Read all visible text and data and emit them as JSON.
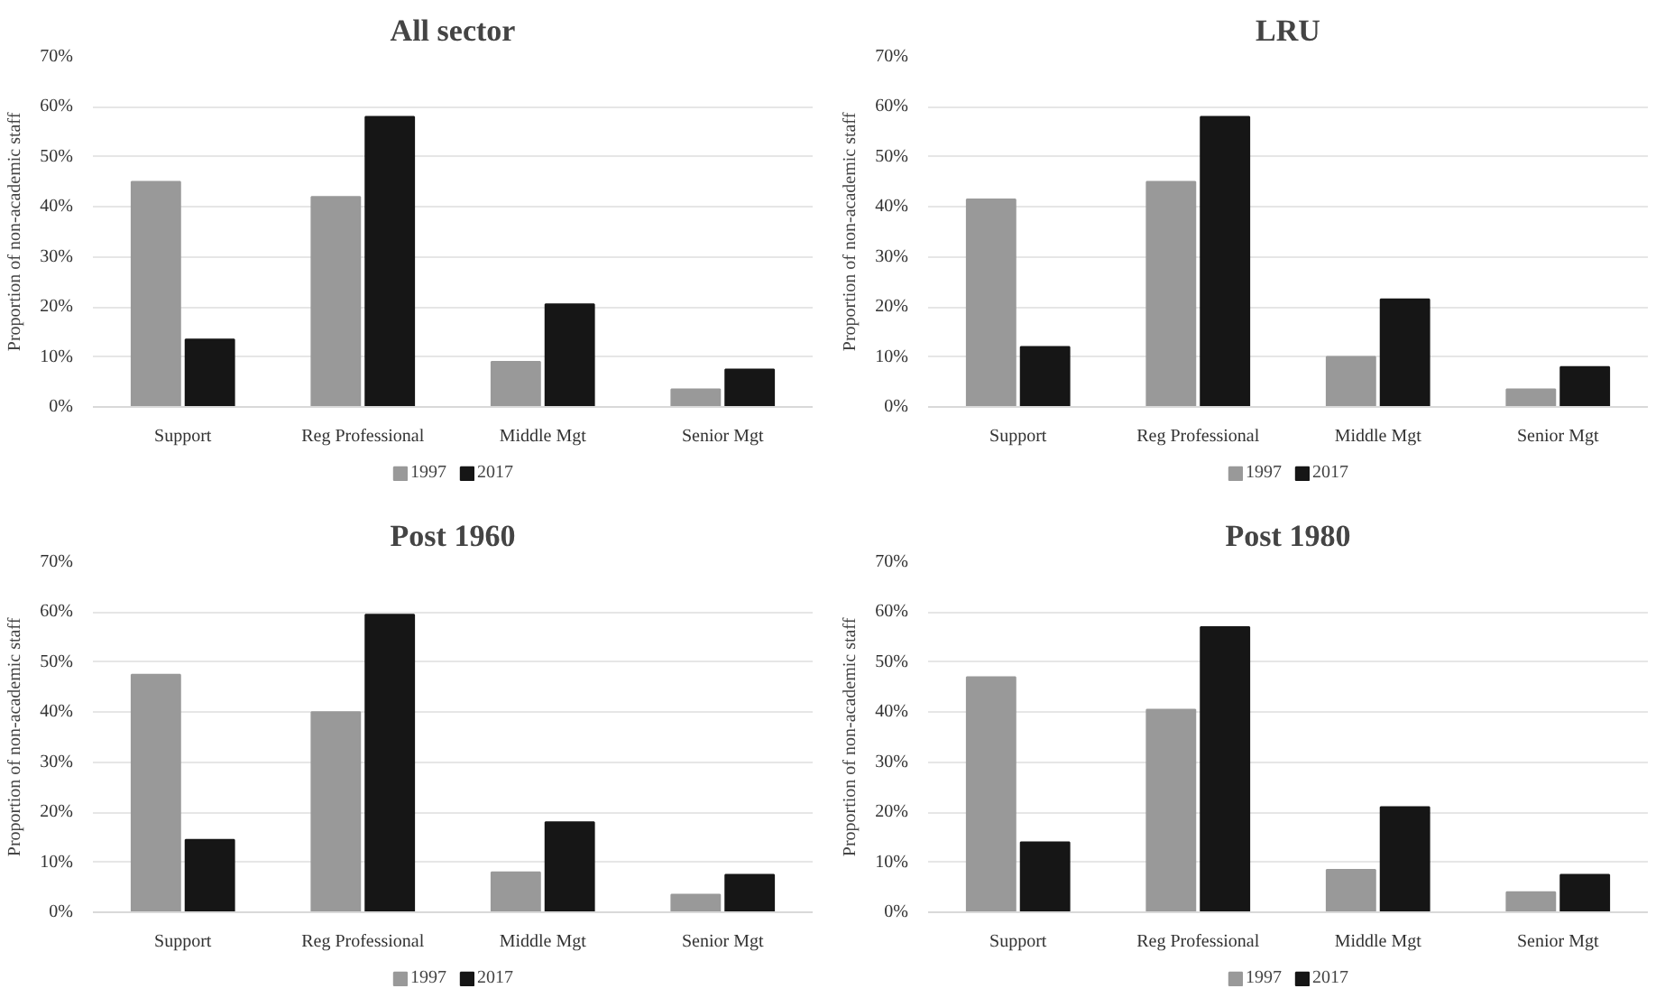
{
  "chart_data": [
    {
      "type": "bar",
      "title": "All sector",
      "ylabel": "Proportion of non-academic staff",
      "categories": [
        "Support",
        "Reg Professional",
        "Middle Mgt",
        "Senior Mgt"
      ],
      "series": [
        {
          "name": "1997",
          "color": "#999999",
          "values": [
            45,
            42,
            9,
            3.5
          ]
        },
        {
          "name": "2017",
          "color": "#161616",
          "values": [
            13.5,
            58,
            20.5,
            7.5
          ]
        }
      ],
      "ylim": [
        0,
        70
      ],
      "yticks": [
        {
          "value": 0,
          "label": "0%"
        },
        {
          "value": 10,
          "label": "10%"
        },
        {
          "value": 20,
          "label": "20%"
        },
        {
          "value": 30,
          "label": "30%"
        },
        {
          "value": 40,
          "label": "40%"
        },
        {
          "value": 50,
          "label": "50%"
        },
        {
          "value": 60,
          "label": "60%"
        },
        {
          "value": 70,
          "label": "70%"
        }
      ],
      "grid": "y",
      "legend": "bottom"
    },
    {
      "type": "bar",
      "title": "LRU",
      "ylabel": "Proportion of non-academic staff",
      "categories": [
        "Support",
        "Reg Professional",
        "Middle Mgt",
        "Senior Mgt"
      ],
      "series": [
        {
          "name": "1997",
          "color": "#999999",
          "values": [
            41.5,
            45,
            10,
            3.5
          ]
        },
        {
          "name": "2017",
          "color": "#161616",
          "values": [
            12,
            58,
            21.5,
            8
          ]
        }
      ],
      "ylim": [
        0,
        70
      ],
      "yticks": [
        {
          "value": 0,
          "label": "0%"
        },
        {
          "value": 10,
          "label": "10%"
        },
        {
          "value": 20,
          "label": "20%"
        },
        {
          "value": 30,
          "label": "30%"
        },
        {
          "value": 40,
          "label": "40%"
        },
        {
          "value": 50,
          "label": "50%"
        },
        {
          "value": 60,
          "label": "60%"
        },
        {
          "value": 70,
          "label": "70%"
        }
      ],
      "grid": "y",
      "legend": "bottom"
    },
    {
      "type": "bar",
      "title": "Post 1960",
      "ylabel": "Proportion of non-academic staff",
      "categories": [
        "Support",
        "Reg Professional",
        "Middle Mgt",
        "Senior Mgt"
      ],
      "series": [
        {
          "name": "1997",
          "color": "#999999",
          "values": [
            47.5,
            40,
            8,
            3.5
          ]
        },
        {
          "name": "2017",
          "color": "#161616",
          "values": [
            14.5,
            59.5,
            18,
            7.5
          ]
        }
      ],
      "ylim": [
        0,
        70
      ],
      "yticks": [
        {
          "value": 0,
          "label": "0%"
        },
        {
          "value": 10,
          "label": "10%"
        },
        {
          "value": 20,
          "label": "20%"
        },
        {
          "value": 30,
          "label": "30%"
        },
        {
          "value": 40,
          "label": "40%"
        },
        {
          "value": 50,
          "label": "50%"
        },
        {
          "value": 60,
          "label": "60%"
        },
        {
          "value": 70,
          "label": "70%"
        }
      ],
      "grid": "y",
      "legend": "bottom"
    },
    {
      "type": "bar",
      "title": "Post 1980",
      "ylabel": "Proportion of non-academic staff",
      "categories": [
        "Support",
        "Reg Professional",
        "Middle Mgt",
        "Senior Mgt"
      ],
      "series": [
        {
          "name": "1997",
          "color": "#999999",
          "values": [
            47,
            40.5,
            8.5,
            4
          ]
        },
        {
          "name": "2017",
          "color": "#161616",
          "values": [
            14,
            57,
            21,
            7.5
          ]
        }
      ],
      "ylim": [
        0,
        70
      ],
      "yticks": [
        {
          "value": 0,
          "label": "0%"
        },
        {
          "value": 10,
          "label": "10%"
        },
        {
          "value": 20,
          "label": "20%"
        },
        {
          "value": 30,
          "label": "30%"
        },
        {
          "value": 40,
          "label": "40%"
        },
        {
          "value": 50,
          "label": "50%"
        },
        {
          "value": 60,
          "label": "60%"
        },
        {
          "value": 70,
          "label": "70%"
        }
      ],
      "grid": "y",
      "legend": "bottom"
    }
  ]
}
